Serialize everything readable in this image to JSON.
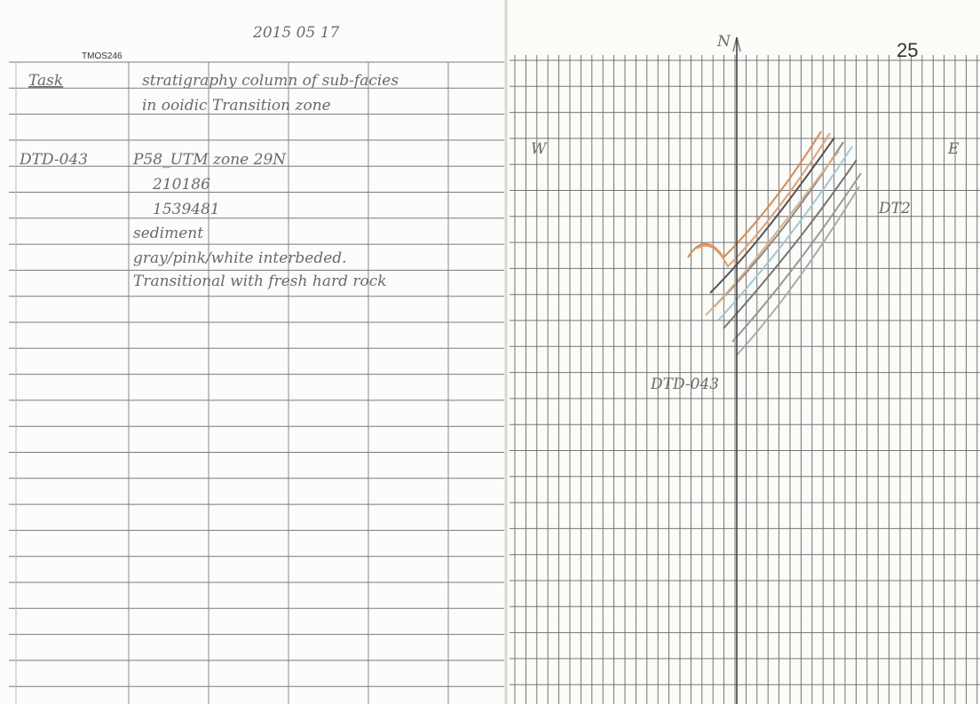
{
  "header": {
    "code": "TMOS246",
    "date": "2015 05 17",
    "page_number": "25"
  },
  "notes": {
    "task_label": "Task",
    "task_lines": [
      "stratigraphy column of sub-facies",
      "in ooidic Transition zone"
    ],
    "station_label": "DTD-043",
    "station_lines": [
      "P58_UTM zone 29N",
      "210186",
      "1539481",
      "sediment",
      "gray/pink/white interbeded.",
      "Transitional with fresh hard rock"
    ]
  },
  "sketch": {
    "north": "N",
    "west": "W",
    "east": "E",
    "unit": "DT2",
    "station": "DTD-043"
  }
}
